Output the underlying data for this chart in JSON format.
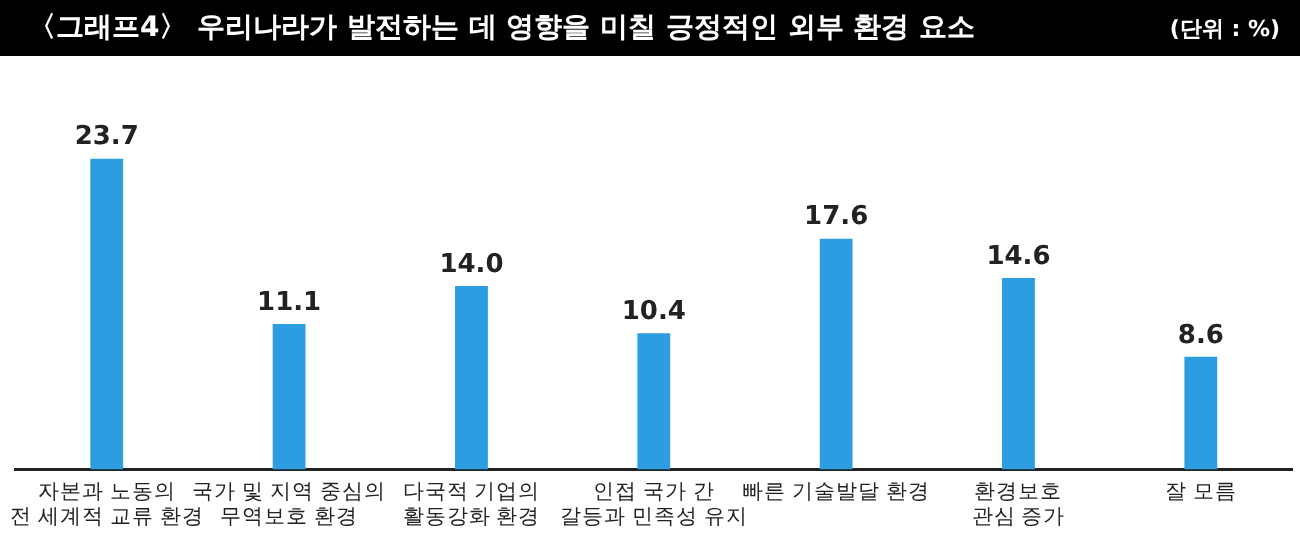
{
  "chart_data": {
    "type": "bar",
    "title": "〈그래프4〉 우리나라가 발전하는 데 영향을 미칠 긍정적인 외부 환경 요소",
    "subtitle": "(단위 : %)",
    "categories": [
      "자본과 노동의\n전 세계적 교류 환경",
      "국가 및 지역 중심의\n무역보호 환경",
      "다국적 기업의\n활동강화 환경",
      "인접 국가 간\n갈등과 민족성 유지",
      "빠른 기술발달 환경",
      "환경보호\n관심 증가",
      "잘 모름"
    ],
    "values": [
      23.7,
      11.1,
      14.0,
      10.4,
      17.6,
      14.6,
      8.6
    ],
    "value_labels": [
      "23.7",
      "11.1",
      "14.0",
      "10.4",
      "17.6",
      "14.6",
      "8.6"
    ],
    "color": "#2b9de0",
    "grid": false,
    "legend": false
  }
}
